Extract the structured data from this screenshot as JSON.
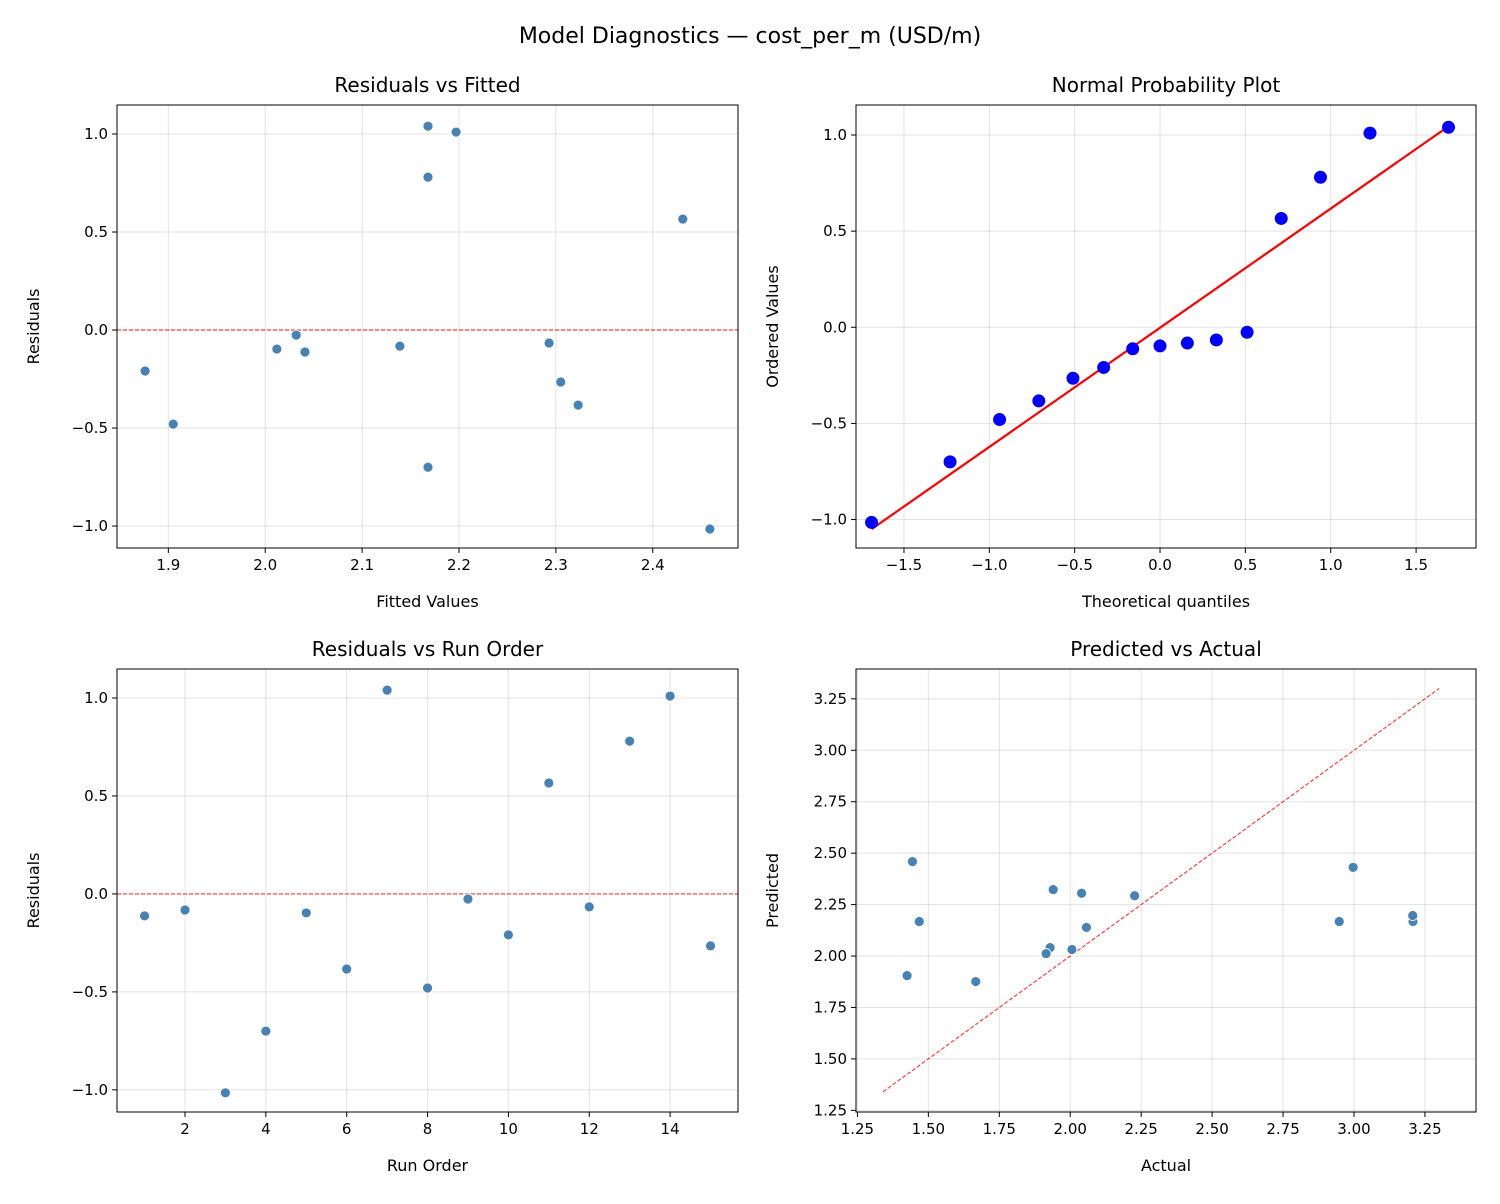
{
  "figure_title": "Model Diagnostics — cost_per_m (USD/m)",
  "chart_data": [
    {
      "id": "resid-fitted",
      "type": "scatter",
      "title": "Residuals vs Fitted",
      "xlabel": "Fitted Values",
      "ylabel": "Residuals",
      "xlim": [
        1.847,
        2.488
      ],
      "ylim": [
        -1.112,
        1.148
      ],
      "xticks": [
        1.9,
        2.0,
        2.1,
        2.2,
        2.3,
        2.4
      ],
      "xtick_labels": [
        "1.9",
        "2.0",
        "2.1",
        "2.2",
        "2.3",
        "2.4"
      ],
      "yticks": [
        -1.0,
        -0.5,
        0.0,
        0.5,
        1.0
      ],
      "ytick_labels": [
        "−1.0",
        "−0.5",
        "0.0",
        "0.5",
        "1.0"
      ],
      "grid": true,
      "hline": 0,
      "x": [
        2.041,
        2.139,
        2.459,
        2.168,
        2.012,
        2.323,
        2.168,
        1.905,
        2.032,
        1.876,
        2.431,
        2.293,
        2.168,
        2.197,
        2.305
      ],
      "y": [
        -0.112,
        -0.082,
        -1.015,
        -0.7,
        -0.097,
        -0.383,
        1.04,
        -0.48,
        -0.026,
        -0.209,
        0.566,
        -0.066,
        0.78,
        1.01,
        -0.265
      ],
      "color": "#4682b4",
      "ref_color": "#ff0000"
    },
    {
      "id": "normal-prob",
      "type": "scatter",
      "title": "Normal Probability Plot",
      "xlabel": "Theoretical quantiles",
      "ylabel": "Ordered Values",
      "xlim": [
        -1.781,
        1.851
      ],
      "ylim": [
        -1.148,
        1.156
      ],
      "xticks": [
        -1.5,
        -1.0,
        -0.5,
        0.0,
        0.5,
        1.0,
        1.5
      ],
      "xtick_labels": [
        "−1.5",
        "−1.0",
        "−0.5",
        "0.0",
        "0.5",
        "1.0",
        "1.5"
      ],
      "yticks": [
        -1.0,
        -0.5,
        0.0,
        0.5,
        1.0
      ],
      "ytick_labels": [
        "−1.0",
        "−0.5",
        "0.0",
        "0.5",
        "1.0"
      ],
      "grid": true,
      "x": [
        -1.69,
        -1.23,
        -0.94,
        -0.71,
        -0.51,
        -0.33,
        -0.16,
        0.0,
        0.16,
        0.33,
        0.51,
        0.71,
        0.94,
        1.23,
        1.69
      ],
      "y": [
        -1.015,
        -0.7,
        -0.48,
        -0.383,
        -0.265,
        -0.209,
        -0.112,
        -0.097,
        -0.082,
        -0.066,
        -0.026,
        0.566,
        0.78,
        1.01,
        1.04
      ],
      "fit_line": {
        "x": [
          -1.69,
          1.69
        ],
        "y": [
          -1.05,
          1.045
        ]
      },
      "color": "#0000ff",
      "ref_color": "#ff0000"
    },
    {
      "id": "resid-order",
      "type": "scatter",
      "title": "Residuals vs Run Order",
      "xlabel": "Run Order",
      "ylabel": "Residuals",
      "xlim": [
        0.318,
        15.68
      ],
      "ylim": [
        -1.113,
        1.148
      ],
      "xticks": [
        2,
        4,
        6,
        8,
        10,
        12,
        14
      ],
      "xtick_labels": [
        "2",
        "4",
        "6",
        "8",
        "10",
        "12",
        "14"
      ],
      "yticks": [
        -1.0,
        -0.5,
        0.0,
        0.5,
        1.0
      ],
      "ytick_labels": [
        "−1.0",
        "−0.5",
        "0.0",
        "0.5",
        "1.0"
      ],
      "grid": true,
      "hline": 0,
      "x": [
        1,
        2,
        3,
        4,
        5,
        6,
        7,
        8,
        9,
        10,
        11,
        12,
        13,
        14,
        15
      ],
      "y": [
        -0.112,
        -0.082,
        -1.015,
        -0.7,
        -0.097,
        -0.383,
        1.04,
        -0.48,
        -0.026,
        -0.209,
        0.566,
        -0.066,
        0.78,
        1.01,
        -0.265
      ],
      "color": "#4682b4",
      "ref_color": "#ff0000"
    },
    {
      "id": "pred-actual",
      "type": "scatter",
      "title": "Predicted vs Actual",
      "xlabel": "Actual",
      "ylabel": "Predicted",
      "xlim": [
        1.245,
        3.43
      ],
      "ylim": [
        1.242,
        3.395
      ],
      "xticks": [
        1.25,
        1.5,
        1.75,
        2.0,
        2.25,
        2.5,
        2.75,
        3.0,
        3.25
      ],
      "xtick_labels": [
        "1.25",
        "1.50",
        "1.75",
        "2.00",
        "2.25",
        "2.50",
        "2.75",
        "3.00",
        "3.25"
      ],
      "yticks": [
        1.25,
        1.5,
        1.75,
        2.0,
        2.25,
        2.5,
        2.75,
        3.0,
        3.25
      ],
      "ytick_labels": [
        "1.25",
        "1.50",
        "1.75",
        "2.00",
        "2.25",
        "2.50",
        "2.75",
        "3.00",
        "3.25"
      ],
      "grid": true,
      "diag_line": {
        "x": [
          1.34,
          3.3
        ],
        "y": [
          1.34,
          3.3
        ]
      },
      "x": [
        1.929,
        2.057,
        1.444,
        1.468,
        1.915,
        1.94,
        3.208,
        1.425,
        2.006,
        1.667,
        2.997,
        2.227,
        2.948,
        3.207,
        2.04
      ],
      "y": [
        2.041,
        2.139,
        2.459,
        2.168,
        2.012,
        2.323,
        2.168,
        1.905,
        2.032,
        1.876,
        2.431,
        2.293,
        2.168,
        2.197,
        2.305
      ],
      "color": "#4682b4",
      "ref_color": "#ff0000"
    }
  ]
}
